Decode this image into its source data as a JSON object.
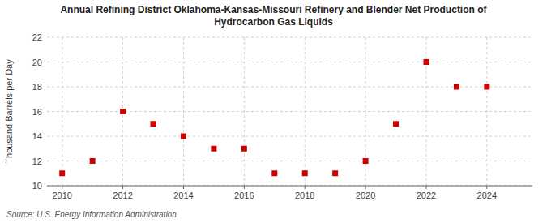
{
  "chart_data": {
    "type": "scatter",
    "title": "Annual Refining District Oklahoma-Kansas-Missouri Refinery and Blender Net Production of\nHydrocarbon Gas Liquids",
    "y_label": "Thousand Barrels per Day",
    "source": "Source: U.S. Energy Information Administration",
    "x": [
      2010,
      2011,
      2012,
      2013,
      2014,
      2015,
      2016,
      2017,
      2018,
      2019,
      2020,
      2021,
      2022,
      2023,
      2024
    ],
    "values": [
      11,
      12,
      16,
      15,
      14,
      13,
      13,
      11,
      11,
      11,
      12,
      15,
      20,
      18,
      18
    ],
    "color": "#cc0000",
    "marker": "square",
    "xlim": [
      2009.5,
      2025.5
    ],
    "ylim": [
      10,
      22
    ],
    "xticks": [
      2010,
      2012,
      2014,
      2016,
      2018,
      2020,
      2022,
      2024
    ],
    "yticks": [
      10,
      12,
      14,
      16,
      18,
      20,
      22
    ],
    "grid": true
  }
}
